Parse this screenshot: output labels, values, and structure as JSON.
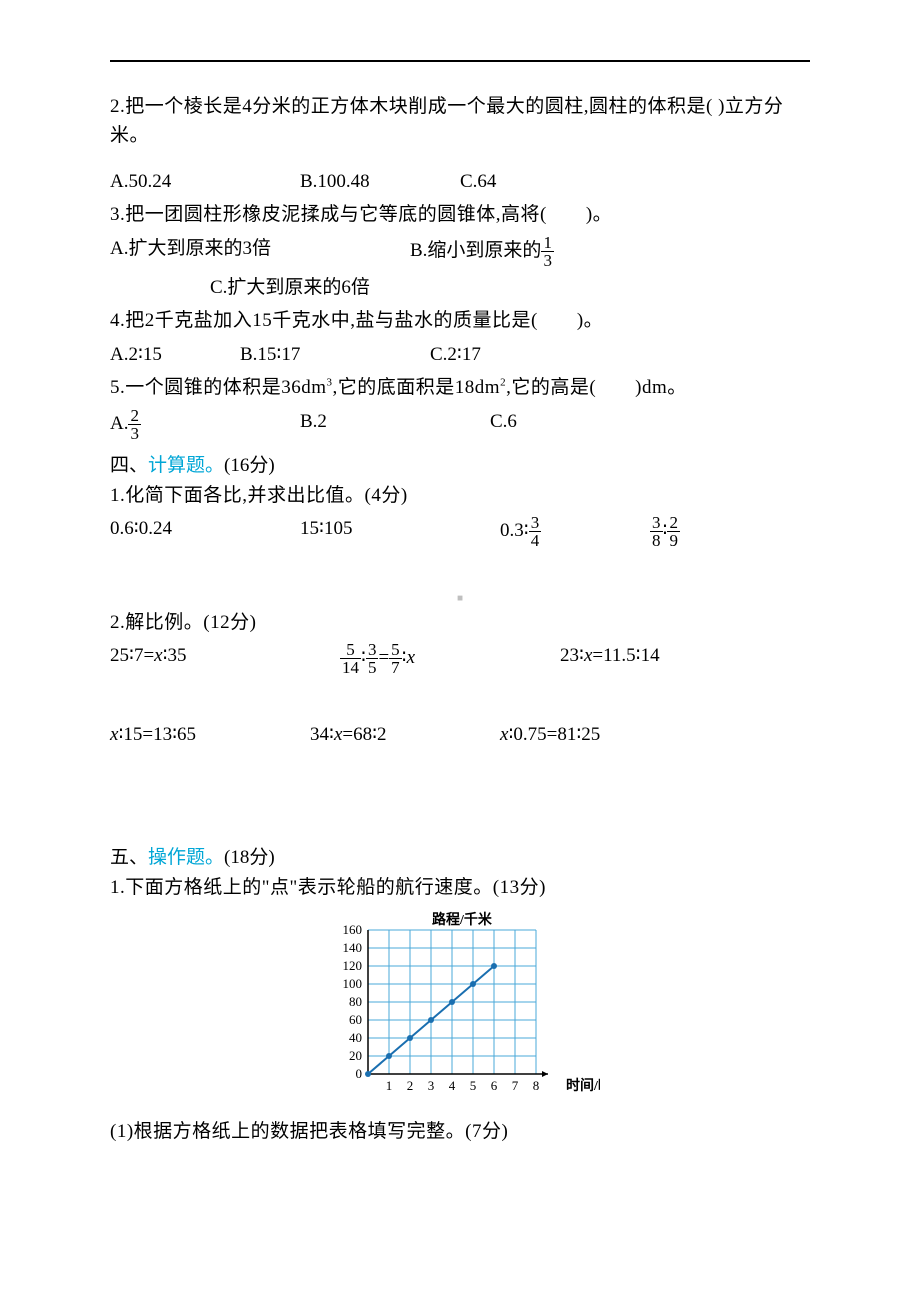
{
  "q2": {
    "text_a": "2.把一个棱长是4分米的正方体木块削成一个最大的圆柱,圆柱的体积是(",
    "text_b": ")立方分米。",
    "opts": {
      "a": "A.50.24",
      "b": "B.100.48",
      "c": "C.64"
    },
    "opt_widths": {
      "a": 190,
      "b": 160,
      "c": 120
    }
  },
  "q3": {
    "text": "3.把一团圆柱形橡皮泥揉成与它等底的圆锥体,高将(　　)。",
    "optA": "A.扩大到原来的3倍",
    "optB_pre": "B.缩小到原来的",
    "optB_frac": {
      "num": "1",
      "den": "3"
    },
    "optC": "C.扩大到原来的6倍"
  },
  "q4": {
    "text": "4.把2千克盐加入15千克水中,盐与盐水的质量比是(　　)。",
    "opts": {
      "a": "A.2∶15",
      "b": "B.15∶17",
      "c": "C.2∶17"
    },
    "opt_widths": {
      "a": 130,
      "b": 190,
      "c": 120
    }
  },
  "q5": {
    "text_a": "5.一个圆锥的体积是36dm",
    "text_b": ",它的底面积是18dm",
    "text_c": ",它的高是(　　)dm。",
    "optA_pre": "A.",
    "optA_frac": {
      "num": "2",
      "den": "3"
    },
    "optB": "B.2",
    "optC": "C.6",
    "opt_widths": {
      "a": 190,
      "b": 190,
      "c": 120
    }
  },
  "sec4": {
    "title_pre": "四、",
    "title_hl": "计算题。",
    "title_post": "(16分)",
    "sub1": "1.化简下面各比,并求出比值。(4分)",
    "items1": {
      "a": "0.6∶0.24",
      "b": "15∶105",
      "c_pre": "0.3∶",
      "c_frac": {
        "num": "3",
        "den": "4"
      },
      "d_frac1": {
        "num": "3",
        "den": "8"
      },
      "d_mid": "∶",
      "d_frac2": {
        "num": "2",
        "den": "9"
      }
    },
    "widths1": {
      "a": 190,
      "b": 200,
      "c": 150,
      "d": 120
    },
    "sub2": "2.解比例。(12分)",
    "items2a": {
      "a": "25∶7=x∶35",
      "b_f1": {
        "num": "5",
        "den": "14"
      },
      "b_mid1": "∶",
      "b_f2": {
        "num": "3",
        "den": "5"
      },
      "b_eq": "=",
      "b_f3": {
        "num": "5",
        "den": "7"
      },
      "b_post": "∶x",
      "c": "23∶x=11.5∶14"
    },
    "widths2a": {
      "a": 230,
      "b": 220,
      "c": 180
    },
    "items2b": {
      "a": "x∶15=13∶65",
      "b": "34∶x=68∶2",
      "c": "x∶0.75=81∶25"
    },
    "widths2b": {
      "a": 200,
      "b": 190,
      "c": 180
    }
  },
  "sec5": {
    "title_pre": "五、",
    "title_hl": "操作题。",
    "title_post": "(18分)",
    "sub1": "1.下面方格纸上的\"点\"表示轮船的航行速度。(13分)",
    "sub1_1": "(1)根据方格纸上的数据把表格填写完整。(7分)"
  },
  "chart": {
    "y_title": "路程/千米",
    "x_title": "时间/时",
    "y_ticks": [
      160,
      140,
      120,
      100,
      80,
      60,
      40,
      20,
      0
    ],
    "x_ticks": [
      1,
      2,
      3,
      4,
      5,
      6,
      7,
      8
    ],
    "y_max": 160,
    "x_max": 8,
    "grid_color": "#4aa8d8",
    "line_color": "#1a6fb0",
    "point_color": "#1a6fb0",
    "points": [
      {
        "x": 0,
        "y": 0
      },
      {
        "x": 1,
        "y": 20
      },
      {
        "x": 2,
        "y": 40
      },
      {
        "x": 3,
        "y": 60
      },
      {
        "x": 4,
        "y": 80
      },
      {
        "x": 5,
        "y": 100
      },
      {
        "x": 6,
        "y": 120
      }
    ]
  },
  "watermark": "■"
}
